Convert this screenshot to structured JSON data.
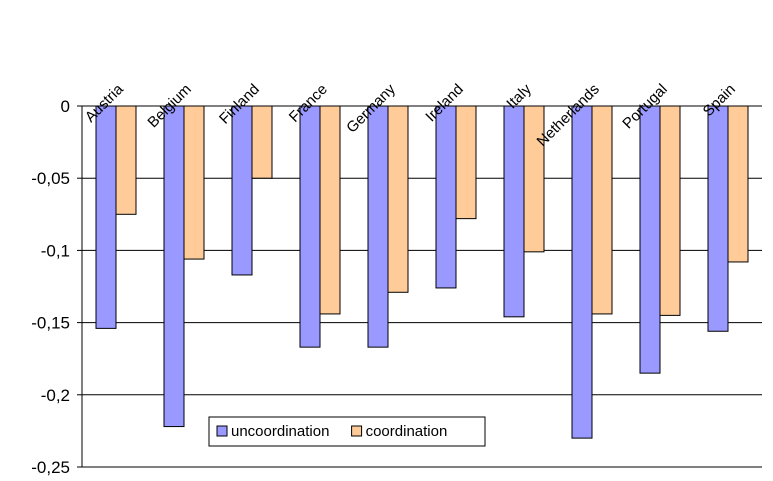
{
  "chart_data": {
    "type": "bar",
    "title": "",
    "xlabel": "",
    "ylabel": "",
    "categories": [
      "Austria",
      "Belgium",
      "Finland",
      "France",
      "Germany",
      "Ireland",
      "Italy",
      "Netherlands",
      "Portugal",
      "Spain"
    ],
    "series": [
      {
        "name": "uncoordination",
        "color": "#9999FF",
        "values": [
          -0.154,
          -0.222,
          -0.117,
          -0.167,
          -0.167,
          -0.126,
          -0.146,
          -0.23,
          -0.185,
          -0.156
        ]
      },
      {
        "name": "coordination",
        "color": "#FFCC99",
        "values": [
          -0.075,
          -0.106,
          -0.05,
          -0.144,
          -0.129,
          -0.078,
          -0.101,
          -0.144,
          -0.145,
          -0.108
        ]
      }
    ],
    "ylim": [
      -0.25,
      0
    ],
    "yticks": [
      0,
      -0.05,
      -0.1,
      -0.15,
      -0.2,
      -0.25
    ],
    "ytick_labels": [
      "0",
      "-0,05",
      "-0,1",
      "-0,15",
      "-0,2",
      "-0,25"
    ],
    "grid": true,
    "legend": "inside-bottom-center"
  }
}
